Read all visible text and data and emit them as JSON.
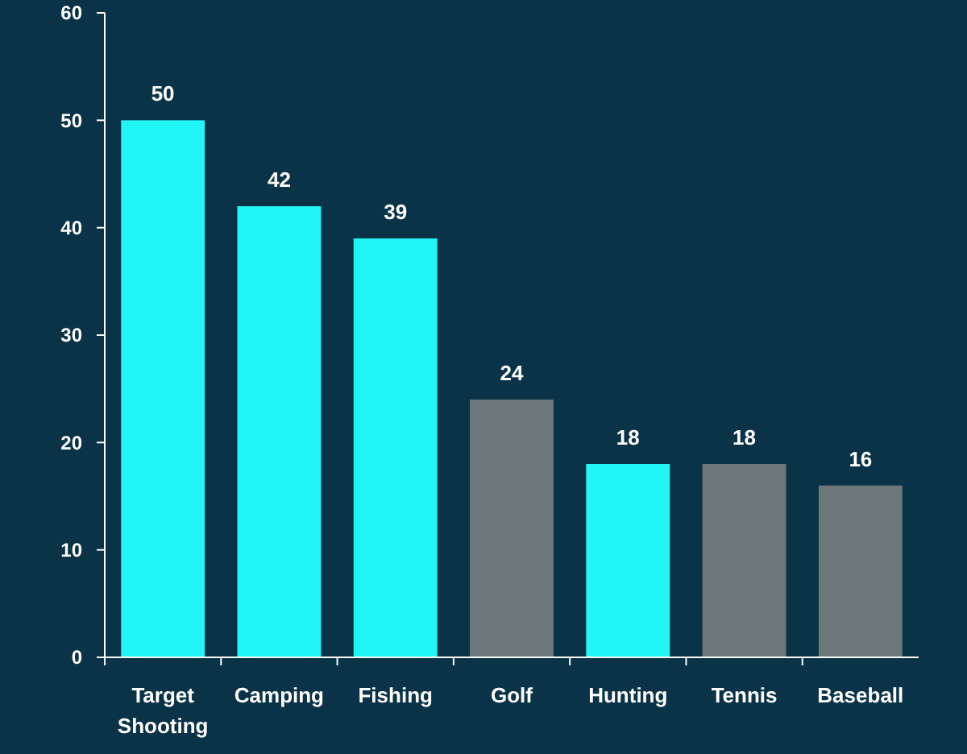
{
  "chart_data": {
    "type": "bar",
    "categories": [
      "Target Shooting",
      "Camping",
      "Fishing",
      "Golf",
      "Hunting",
      "Tennis",
      "Baseball"
    ],
    "values": [
      50,
      42,
      39,
      24,
      18,
      18,
      16
    ],
    "colors": [
      "#22f5f5",
      "#22f5f5",
      "#22f5f5",
      "#6b7778",
      "#22f5f5",
      "#6b7778",
      "#6b7778"
    ],
    "ylim": [
      0,
      60
    ],
    "yticks": [
      0,
      10,
      20,
      30,
      40,
      50,
      60
    ],
    "data_labels": true,
    "grid": false
  }
}
